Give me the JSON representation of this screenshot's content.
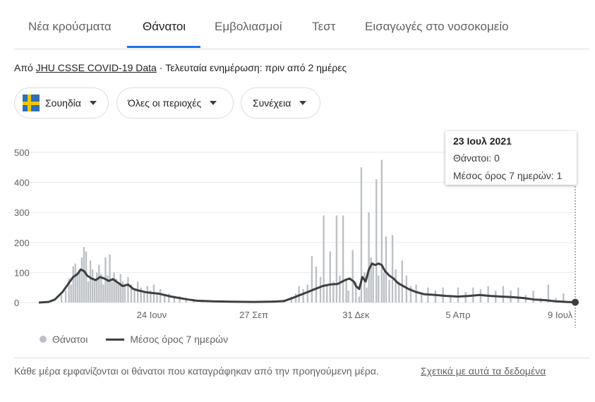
{
  "tabs": [
    {
      "label": "Νέα κρούσματα"
    },
    {
      "label": "Θάνατοι"
    },
    {
      "label": "Εμβολιασμοί"
    },
    {
      "label": "Τεστ"
    },
    {
      "label": "Εισαγωγές στο νοσοκομείο"
    }
  ],
  "active_tab": "Θάνατοι",
  "source": {
    "prefix": "Από",
    "link": "JHU CSSE COVID-19 Data",
    "updated": "· Τελευταία ενημέρωση: πριν από 2 ημέρες"
  },
  "filters": {
    "country": "Σουηδία",
    "region": "Όλες οι περιοχές",
    "mode": "Συνέχεια"
  },
  "tooltip": {
    "date": "23 Ιουλ 2021",
    "deaths_label": "Θάνατοι: 0",
    "avg_label": "Μέσος όρος 7 ημερών: 1"
  },
  "legend": {
    "deaths": "Θάνατοι",
    "avg": "Μέσος όρος 7 ημερών"
  },
  "footer": {
    "note": "Κάθε μέρα εμφανίζονται οι θάνατοι που καταγράφηκαν από την προηγούμενη μέρα.",
    "about_link": "Σχετικά με αυτά τα δεδομένα"
  },
  "colors": {
    "bars": "#bdc1c6",
    "avg_line": "#3c4043",
    "active_tab": "#1a73e8",
    "gridline": "#e8eaed"
  },
  "chart_data": {
    "type": "bar",
    "title": "",
    "xlabel": "",
    "ylabel": "",
    "ylim": [
      0,
      500
    ],
    "yticks": [
      0,
      100,
      200,
      300,
      400,
      500
    ],
    "x_range": [
      "2020-03-11",
      "2021-07-23"
    ],
    "xticks": [
      {
        "date": "2020-06-24",
        "label": "24 Ιουν"
      },
      {
        "date": "2020-09-27",
        "label": "27 Σεπ"
      },
      {
        "date": "2020-12-31",
        "label": "31 Δεκ"
      },
      {
        "date": "2021-04-05",
        "label": "5 Απρ"
      },
      {
        "date": "2021-07-09",
        "label": "9 Ιουλ"
      }
    ],
    "grid": true,
    "legend_position": "bottom-left",
    "series": [
      {
        "name": "Θάνατοι",
        "kind": "bar",
        "points": [
          [
            "2020-04-01",
            25
          ],
          [
            "2020-04-05",
            40
          ],
          [
            "2020-04-08",
            80
          ],
          [
            "2020-04-10",
            60
          ],
          [
            "2020-04-12",
            120
          ],
          [
            "2020-04-14",
            130
          ],
          [
            "2020-04-16",
            95
          ],
          [
            "2020-04-18",
            110
          ],
          [
            "2020-04-20",
            150
          ],
          [
            "2020-04-22",
            185
          ],
          [
            "2020-04-24",
            170
          ],
          [
            "2020-04-26",
            70
          ],
          [
            "2020-04-28",
            140
          ],
          [
            "2020-04-30",
            110
          ],
          [
            "2020-05-02",
            80
          ],
          [
            "2020-05-04",
            100
          ],
          [
            "2020-05-06",
            125
          ],
          [
            "2020-05-08",
            95
          ],
          [
            "2020-05-10",
            60
          ],
          [
            "2020-05-12",
            150
          ],
          [
            "2020-05-14",
            90
          ],
          [
            "2020-05-16",
            160
          ],
          [
            "2020-05-18",
            70
          ],
          [
            "2020-05-20",
            100
          ],
          [
            "2020-05-22",
            80
          ],
          [
            "2020-05-24",
            60
          ],
          [
            "2020-05-26",
            95
          ],
          [
            "2020-05-28",
            70
          ],
          [
            "2020-05-30",
            55
          ],
          [
            "2020-06-02",
            85
          ],
          [
            "2020-06-05",
            60
          ],
          [
            "2020-06-08",
            40
          ],
          [
            "2020-06-11",
            70
          ],
          [
            "2020-06-14",
            50
          ],
          [
            "2020-06-17",
            35
          ],
          [
            "2020-06-20",
            55
          ],
          [
            "2020-06-23",
            40
          ],
          [
            "2020-06-26",
            60
          ],
          [
            "2020-06-29",
            30
          ],
          [
            "2020-07-02",
            45
          ],
          [
            "2020-07-06",
            25
          ],
          [
            "2020-07-10",
            30
          ],
          [
            "2020-07-15",
            20
          ],
          [
            "2020-07-20",
            22
          ],
          [
            "2020-07-26",
            15
          ],
          [
            "2020-08-02",
            10
          ],
          [
            "2020-08-10",
            8
          ],
          [
            "2020-08-20",
            6
          ],
          [
            "2020-09-01",
            5
          ],
          [
            "2020-09-15",
            3
          ],
          [
            "2020-10-01",
            5
          ],
          [
            "2020-10-15",
            8
          ],
          [
            "2020-10-25",
            10
          ],
          [
            "2020-11-01",
            20
          ],
          [
            "2020-11-05",
            30
          ],
          [
            "2020-11-08",
            55
          ],
          [
            "2020-11-12",
            45
          ],
          [
            "2020-11-16",
            60
          ],
          [
            "2020-11-20",
            155
          ],
          [
            "2020-11-24",
            120
          ],
          [
            "2020-11-28",
            85
          ],
          [
            "2020-12-01",
            290
          ],
          [
            "2020-12-04",
            60
          ],
          [
            "2020-12-07",
            170
          ],
          [
            "2020-12-10",
            70
          ],
          [
            "2020-12-13",
            290
          ],
          [
            "2020-12-16",
            90
          ],
          [
            "2020-12-19",
            290
          ],
          [
            "2020-12-22",
            80
          ],
          [
            "2020-12-24",
            40
          ],
          [
            "2020-12-28",
            175
          ],
          [
            "2020-12-31",
            70
          ],
          [
            "2021-01-03",
            20
          ],
          [
            "2021-01-05",
            450
          ],
          [
            "2021-01-08",
            100
          ],
          [
            "2021-01-10",
            50
          ],
          [
            "2021-01-12",
            300
          ],
          [
            "2021-01-14",
            150
          ],
          [
            "2021-01-16",
            130
          ],
          [
            "2021-01-19",
            410
          ],
          [
            "2021-01-21",
            90
          ],
          [
            "2021-01-24",
            475
          ],
          [
            "2021-01-26",
            100
          ],
          [
            "2021-01-28",
            220
          ],
          [
            "2021-01-31",
            75
          ],
          [
            "2021-02-03",
            225
          ],
          [
            "2021-02-06",
            110
          ],
          [
            "2021-02-09",
            70
          ],
          [
            "2021-02-12",
            140
          ],
          [
            "2021-02-16",
            90
          ],
          [
            "2021-02-20",
            55
          ],
          [
            "2021-02-25",
            60
          ],
          [
            "2021-03-02",
            35
          ],
          [
            "2021-03-08",
            50
          ],
          [
            "2021-03-15",
            40
          ],
          [
            "2021-03-22",
            50
          ],
          [
            "2021-03-29",
            25
          ],
          [
            "2021-04-05",
            50
          ],
          [
            "2021-04-12",
            35
          ],
          [
            "2021-04-19",
            50
          ],
          [
            "2021-04-26",
            45
          ],
          [
            "2021-05-03",
            55
          ],
          [
            "2021-05-10",
            40
          ],
          [
            "2021-05-17",
            55
          ],
          [
            "2021-05-24",
            40
          ],
          [
            "2021-05-31",
            50
          ],
          [
            "2021-06-07",
            25
          ],
          [
            "2021-06-14",
            40
          ],
          [
            "2021-06-21",
            15
          ],
          [
            "2021-06-28",
            60
          ],
          [
            "2021-07-05",
            15
          ],
          [
            "2021-07-12",
            30
          ],
          [
            "2021-07-19",
            5
          ]
        ]
      },
      {
        "name": "Μέσος όρος 7 ημερών",
        "kind": "line",
        "points": [
          [
            "2020-03-11",
            0
          ],
          [
            "2020-03-20",
            2
          ],
          [
            "2020-03-26",
            10
          ],
          [
            "2020-04-02",
            35
          ],
          [
            "2020-04-08",
            65
          ],
          [
            "2020-04-12",
            85
          ],
          [
            "2020-04-16",
            95
          ],
          [
            "2020-04-19",
            110
          ],
          [
            "2020-04-22",
            105
          ],
          [
            "2020-04-25",
            90
          ],
          [
            "2020-04-29",
            80
          ],
          [
            "2020-05-03",
            75
          ],
          [
            "2020-05-07",
            85
          ],
          [
            "2020-05-11",
            80
          ],
          [
            "2020-05-15",
            72
          ],
          [
            "2020-05-19",
            78
          ],
          [
            "2020-05-24",
            65
          ],
          [
            "2020-05-28",
            55
          ],
          [
            "2020-06-02",
            60
          ],
          [
            "2020-06-07",
            45
          ],
          [
            "2020-06-12",
            40
          ],
          [
            "2020-06-18",
            35
          ],
          [
            "2020-06-24",
            32
          ],
          [
            "2020-06-30",
            30
          ],
          [
            "2020-07-06",
            25
          ],
          [
            "2020-07-12",
            20
          ],
          [
            "2020-07-20",
            15
          ],
          [
            "2020-07-28",
            10
          ],
          [
            "2020-08-05",
            6
          ],
          [
            "2020-08-20",
            4
          ],
          [
            "2020-09-05",
            3
          ],
          [
            "2020-09-27",
            2
          ],
          [
            "2020-10-15",
            3
          ],
          [
            "2020-10-25",
            5
          ],
          [
            "2020-11-02",
            15
          ],
          [
            "2020-11-09",
            25
          ],
          [
            "2020-11-16",
            35
          ],
          [
            "2020-11-23",
            45
          ],
          [
            "2020-11-30",
            55
          ],
          [
            "2020-12-07",
            60
          ],
          [
            "2020-12-14",
            62
          ],
          [
            "2020-12-21",
            75
          ],
          [
            "2020-12-25",
            80
          ],
          [
            "2020-12-29",
            70
          ],
          [
            "2020-12-31",
            55
          ],
          [
            "2021-01-03",
            45
          ],
          [
            "2021-01-06",
            85
          ],
          [
            "2021-01-09",
            70
          ],
          [
            "2021-01-12",
            110
          ],
          [
            "2021-01-15",
            130
          ],
          [
            "2021-01-18",
            125
          ],
          [
            "2021-01-21",
            130
          ],
          [
            "2021-01-24",
            125
          ],
          [
            "2021-01-27",
            105
          ],
          [
            "2021-01-31",
            90
          ],
          [
            "2021-02-04",
            80
          ],
          [
            "2021-02-08",
            65
          ],
          [
            "2021-02-13",
            55
          ],
          [
            "2021-02-18",
            45
          ],
          [
            "2021-02-25",
            35
          ],
          [
            "2021-03-04",
            28
          ],
          [
            "2021-03-15",
            25
          ],
          [
            "2021-03-25",
            22
          ],
          [
            "2021-04-05",
            20
          ],
          [
            "2021-04-15",
            22
          ],
          [
            "2021-04-25",
            25
          ],
          [
            "2021-05-05",
            22
          ],
          [
            "2021-05-15",
            20
          ],
          [
            "2021-05-25",
            18
          ],
          [
            "2021-06-05",
            15
          ],
          [
            "2021-06-15",
            10
          ],
          [
            "2021-06-25",
            8
          ],
          [
            "2021-07-05",
            4
          ],
          [
            "2021-07-15",
            2
          ],
          [
            "2021-07-23",
            1
          ]
        ]
      }
    ]
  }
}
